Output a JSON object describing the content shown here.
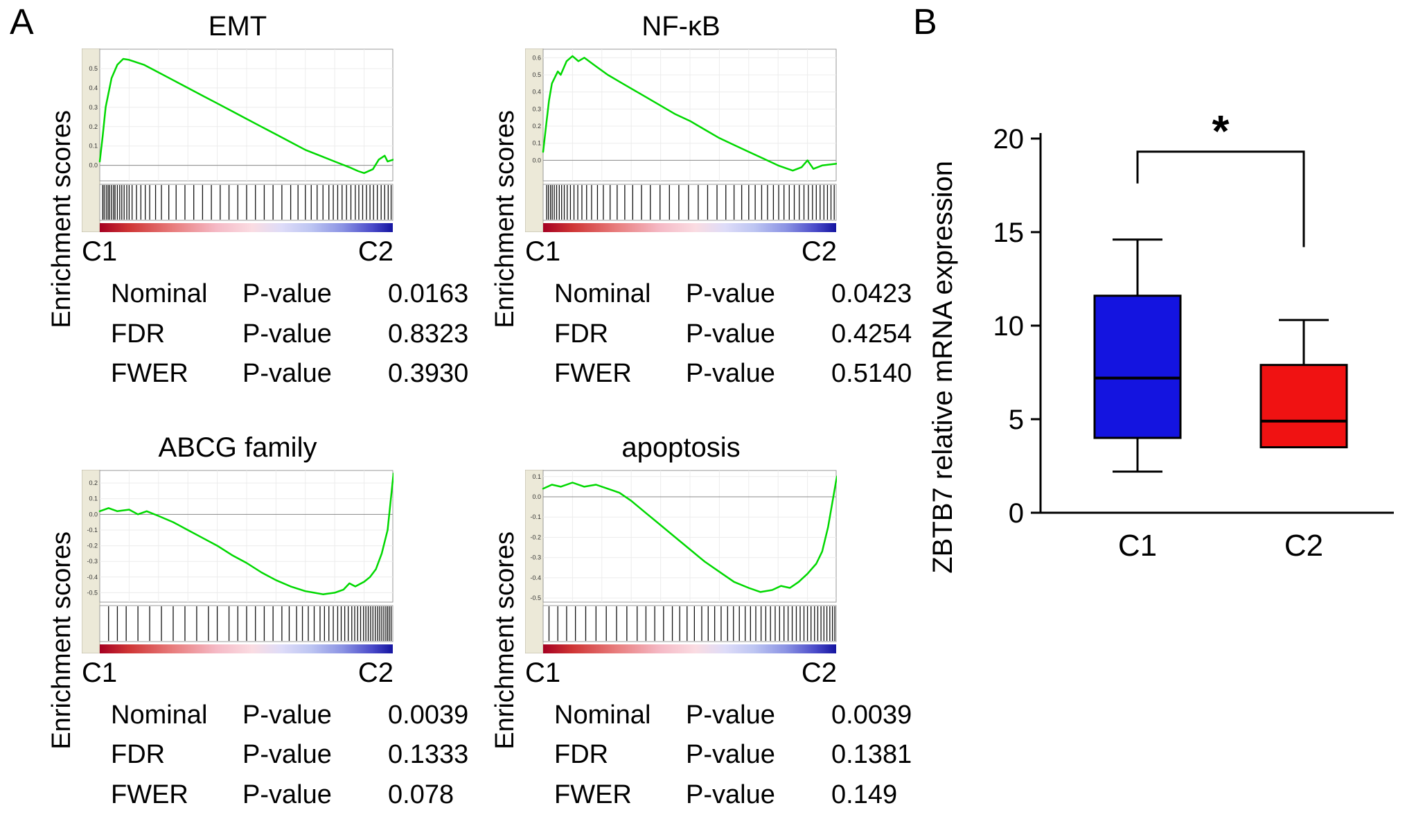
{
  "figure": {
    "panel_a_label": "A",
    "panel_b_label": "B"
  },
  "gsea_rank_bar": [
    [
      "0%",
      "#a50021"
    ],
    [
      "10%",
      "#cf3535"
    ],
    [
      "25%",
      "#e87d7d"
    ],
    [
      "40%",
      "#f5bac6"
    ],
    [
      "52%",
      "#fadce2"
    ],
    [
      "62%",
      "#dedcf8"
    ],
    [
      "72%",
      "#bdc5f2"
    ],
    [
      "83%",
      "#8a92e3"
    ],
    [
      "93%",
      "#4a4ac9"
    ],
    [
      "100%",
      "#1414a0"
    ]
  ],
  "chart_data": [
    {
      "id": "emt",
      "type": "line",
      "chart_kind": "gsea_enrichment",
      "title": "EMT",
      "ylabel": "Enrichment scores",
      "x_start_label": "C1",
      "x_end_label": "C2",
      "line_color": "#00d800",
      "ylim": [
        -0.08,
        0.6
      ],
      "yticks": [
        0.5,
        0.4,
        0.3,
        0.2,
        0.1,
        0.0
      ],
      "curve": [
        [
          0,
          0.02
        ],
        [
          0.01,
          0.15
        ],
        [
          0.02,
          0.3
        ],
        [
          0.04,
          0.45
        ],
        [
          0.06,
          0.52
        ],
        [
          0.08,
          0.55
        ],
        [
          0.1,
          0.545
        ],
        [
          0.15,
          0.52
        ],
        [
          0.2,
          0.48
        ],
        [
          0.25,
          0.44
        ],
        [
          0.3,
          0.4
        ],
        [
          0.35,
          0.36
        ],
        [
          0.4,
          0.32
        ],
        [
          0.45,
          0.28
        ],
        [
          0.5,
          0.24
        ],
        [
          0.55,
          0.2
        ],
        [
          0.6,
          0.16
        ],
        [
          0.65,
          0.12
        ],
        [
          0.7,
          0.08
        ],
        [
          0.75,
          0.05
        ],
        [
          0.8,
          0.02
        ],
        [
          0.85,
          -0.01
        ],
        [
          0.88,
          -0.03
        ],
        [
          0.9,
          -0.04
        ],
        [
          0.93,
          -0.02
        ],
        [
          0.95,
          0.03
        ],
        [
          0.97,
          0.05
        ],
        [
          0.98,
          0.02
        ],
        [
          1,
          0.03
        ]
      ],
      "hits": [
        0.01,
        0.015,
        0.022,
        0.028,
        0.033,
        0.04,
        0.047,
        0.052,
        0.06,
        0.068,
        0.075,
        0.083,
        0.092,
        0.1,
        0.11,
        0.125,
        0.14,
        0.155,
        0.17,
        0.19,
        0.21,
        0.235,
        0.26,
        0.29,
        0.32,
        0.35,
        0.38,
        0.41,
        0.44,
        0.47,
        0.5,
        0.53,
        0.56,
        0.59,
        0.62,
        0.65,
        0.675,
        0.7,
        0.72,
        0.74,
        0.76,
        0.78,
        0.795,
        0.81,
        0.825,
        0.84,
        0.855,
        0.87,
        0.882,
        0.895,
        0.908,
        0.92,
        0.932,
        0.945,
        0.958,
        0.97,
        0.982,
        0.992
      ],
      "stats": [
        {
          "label": "Nominal",
          "metric": "P-value",
          "value": "0.0163"
        },
        {
          "label": "FDR",
          "metric": "P-value",
          "value": "0.8323"
        },
        {
          "label": "FWER",
          "metric": "P-value",
          "value": "0.3930"
        }
      ]
    },
    {
      "id": "nfkb",
      "type": "line",
      "chart_kind": "gsea_enrichment",
      "title": "NF-κB",
      "ylabel": "Enrichment scores",
      "x_start_label": "C1",
      "x_end_label": "C2",
      "line_color": "#00d800",
      "ylim": [
        -0.12,
        0.65
      ],
      "yticks": [
        0.6,
        0.5,
        0.4,
        0.3,
        0.2,
        0.1,
        0.0
      ],
      "curve": [
        [
          0,
          0.05
        ],
        [
          0.01,
          0.2
        ],
        [
          0.02,
          0.35
        ],
        [
          0.03,
          0.45
        ],
        [
          0.05,
          0.52
        ],
        [
          0.06,
          0.5
        ],
        [
          0.08,
          0.58
        ],
        [
          0.1,
          0.61
        ],
        [
          0.12,
          0.58
        ],
        [
          0.14,
          0.6
        ],
        [
          0.18,
          0.55
        ],
        [
          0.22,
          0.5
        ],
        [
          0.26,
          0.46
        ],
        [
          0.3,
          0.42
        ],
        [
          0.35,
          0.37
        ],
        [
          0.4,
          0.32
        ],
        [
          0.45,
          0.27
        ],
        [
          0.5,
          0.23
        ],
        [
          0.55,
          0.18
        ],
        [
          0.6,
          0.13
        ],
        [
          0.65,
          0.09
        ],
        [
          0.7,
          0.05
        ],
        [
          0.75,
          0.01
        ],
        [
          0.8,
          -0.03
        ],
        [
          0.85,
          -0.06
        ],
        [
          0.88,
          -0.04
        ],
        [
          0.9,
          0.0
        ],
        [
          0.92,
          -0.05
        ],
        [
          0.95,
          -0.03
        ],
        [
          1,
          -0.02
        ]
      ],
      "hits": [
        0.012,
        0.018,
        0.025,
        0.031,
        0.038,
        0.046,
        0.055,
        0.063,
        0.072,
        0.082,
        0.093,
        0.105,
        0.118,
        0.132,
        0.148,
        0.165,
        0.185,
        0.205,
        0.228,
        0.252,
        0.278,
        0.305,
        0.335,
        0.365,
        0.398,
        0.43,
        0.462,
        0.495,
        0.528,
        0.56,
        0.592,
        0.622,
        0.65,
        0.676,
        0.7,
        0.722,
        0.744,
        0.764,
        0.784,
        0.802,
        0.82,
        0.838,
        0.855,
        0.872,
        0.888,
        0.903,
        0.917,
        0.93,
        0.943,
        0.956,
        0.968,
        0.98,
        0.991
      ],
      "stats": [
        {
          "label": "Nominal",
          "metric": "P-value",
          "value": "0.0423"
        },
        {
          "label": "FDR",
          "metric": "P-value",
          "value": "0.4254"
        },
        {
          "label": "FWER",
          "metric": "P-value",
          "value": "0.5140"
        }
      ]
    },
    {
      "id": "abcg",
      "type": "line",
      "chart_kind": "gsea_enrichment",
      "title": "ABCG family",
      "ylabel": "Enrichment scores",
      "x_start_label": "C1",
      "x_end_label": "C2",
      "line_color": "#00d800",
      "ylim": [
        -0.56,
        0.28
      ],
      "yticks": [
        0.2,
        0.1,
        0.0,
        -0.1,
        -0.2,
        -0.3,
        -0.4,
        -0.5
      ],
      "curve": [
        [
          0,
          0.02
        ],
        [
          0.03,
          0.04
        ],
        [
          0.06,
          0.02
        ],
        [
          0.1,
          0.03
        ],
        [
          0.13,
          0.0
        ],
        [
          0.16,
          0.02
        ],
        [
          0.2,
          -0.01
        ],
        [
          0.25,
          -0.05
        ],
        [
          0.3,
          -0.1
        ],
        [
          0.35,
          -0.15
        ],
        [
          0.4,
          -0.2
        ],
        [
          0.45,
          -0.26
        ],
        [
          0.5,
          -0.31
        ],
        [
          0.55,
          -0.37
        ],
        [
          0.6,
          -0.42
        ],
        [
          0.65,
          -0.46
        ],
        [
          0.7,
          -0.49
        ],
        [
          0.73,
          -0.5
        ],
        [
          0.76,
          -0.51
        ],
        [
          0.8,
          -0.5
        ],
        [
          0.83,
          -0.48
        ],
        [
          0.85,
          -0.44
        ],
        [
          0.87,
          -0.46
        ],
        [
          0.9,
          -0.43
        ],
        [
          0.92,
          -0.4
        ],
        [
          0.94,
          -0.35
        ],
        [
          0.96,
          -0.25
        ],
        [
          0.98,
          -0.1
        ],
        [
          1,
          0.26
        ]
      ],
      "hits": [
        0.03,
        0.06,
        0.09,
        0.13,
        0.17,
        0.21,
        0.25,
        0.29,
        0.33,
        0.37,
        0.4,
        0.44,
        0.47,
        0.5,
        0.53,
        0.56,
        0.59,
        0.62,
        0.645,
        0.67,
        0.69,
        0.71,
        0.73,
        0.75,
        0.765,
        0.78,
        0.795,
        0.81,
        0.822,
        0.834,
        0.846,
        0.858,
        0.868,
        0.878,
        0.888,
        0.898,
        0.906,
        0.914,
        0.922,
        0.93,
        0.938,
        0.946,
        0.953,
        0.96,
        0.967,
        0.974,
        0.98,
        0.986,
        0.992
      ],
      "stats": [
        {
          "label": "Nominal",
          "metric": "P-value",
          "value": "0.0039"
        },
        {
          "label": "FDR",
          "metric": "P-value",
          "value": "0.1333"
        },
        {
          "label": "FWER",
          "metric": "P-value",
          "value": "0.078"
        }
      ]
    },
    {
      "id": "apoptosis",
      "type": "line",
      "chart_kind": "gsea_enrichment",
      "title": "apoptosis",
      "ylabel": "Enrichment scores",
      "x_start_label": "C1",
      "x_end_label": "C2",
      "line_color": "#00d800",
      "ylim": [
        -0.52,
        0.13
      ],
      "yticks": [
        0.1,
        0.0,
        -0.1,
        -0.2,
        -0.3,
        -0.4,
        -0.5
      ],
      "curve": [
        [
          0,
          0.04
        ],
        [
          0.03,
          0.06
        ],
        [
          0.06,
          0.05
        ],
        [
          0.1,
          0.07
        ],
        [
          0.14,
          0.05
        ],
        [
          0.18,
          0.06
        ],
        [
          0.22,
          0.04
        ],
        [
          0.26,
          0.02
        ],
        [
          0.3,
          -0.02
        ],
        [
          0.35,
          -0.08
        ],
        [
          0.4,
          -0.14
        ],
        [
          0.45,
          -0.2
        ],
        [
          0.5,
          -0.26
        ],
        [
          0.55,
          -0.32
        ],
        [
          0.6,
          -0.37
        ],
        [
          0.65,
          -0.42
        ],
        [
          0.7,
          -0.45
        ],
        [
          0.74,
          -0.47
        ],
        [
          0.78,
          -0.46
        ],
        [
          0.81,
          -0.44
        ],
        [
          0.84,
          -0.45
        ],
        [
          0.87,
          -0.42
        ],
        [
          0.9,
          -0.38
        ],
        [
          0.93,
          -0.33
        ],
        [
          0.95,
          -0.27
        ],
        [
          0.97,
          -0.15
        ],
        [
          1,
          0.1
        ]
      ],
      "hits": [
        0.02,
        0.05,
        0.08,
        0.11,
        0.145,
        0.18,
        0.215,
        0.25,
        0.285,
        0.32,
        0.35,
        0.38,
        0.41,
        0.44,
        0.465,
        0.49,
        0.515,
        0.54,
        0.562,
        0.584,
        0.606,
        0.628,
        0.648,
        0.668,
        0.688,
        0.706,
        0.724,
        0.742,
        0.758,
        0.774,
        0.79,
        0.805,
        0.82,
        0.834,
        0.848,
        0.862,
        0.875,
        0.888,
        0.9,
        0.912,
        0.924,
        0.935,
        0.946,
        0.956,
        0.966,
        0.976,
        0.985,
        0.993
      ],
      "stats": [
        {
          "label": "Nominal",
          "metric": "P-value",
          "value": "0.0039"
        },
        {
          "label": "FDR",
          "metric": "P-value",
          "value": "0.1381"
        },
        {
          "label": "FWER",
          "metric": "P-value",
          "value": "0.149"
        }
      ]
    },
    {
      "id": "zbtb7",
      "type": "box",
      "title": "",
      "ylabel": "ZBTB7 relative mRNA expression",
      "categories": [
        "C1",
        "C2"
      ],
      "ylim": [
        0,
        20
      ],
      "yticks": [
        0,
        5,
        10,
        15,
        20
      ],
      "boxes": [
        {
          "category": "C1",
          "color": "#1414e0",
          "whisker_low": 2.2,
          "q1": 4.0,
          "median": 7.2,
          "q3": 11.6,
          "whisker_high": 14.6
        },
        {
          "category": "C2",
          "color": "#f01212",
          "whisker_low": 3.5,
          "q1": 3.5,
          "median": 4.9,
          "q3": 7.9,
          "whisker_high": 10.3
        }
      ],
      "significance": {
        "symbol": "*",
        "top_y": 19.3,
        "left_y": 17.6,
        "right_y": 14.2
      }
    }
  ]
}
